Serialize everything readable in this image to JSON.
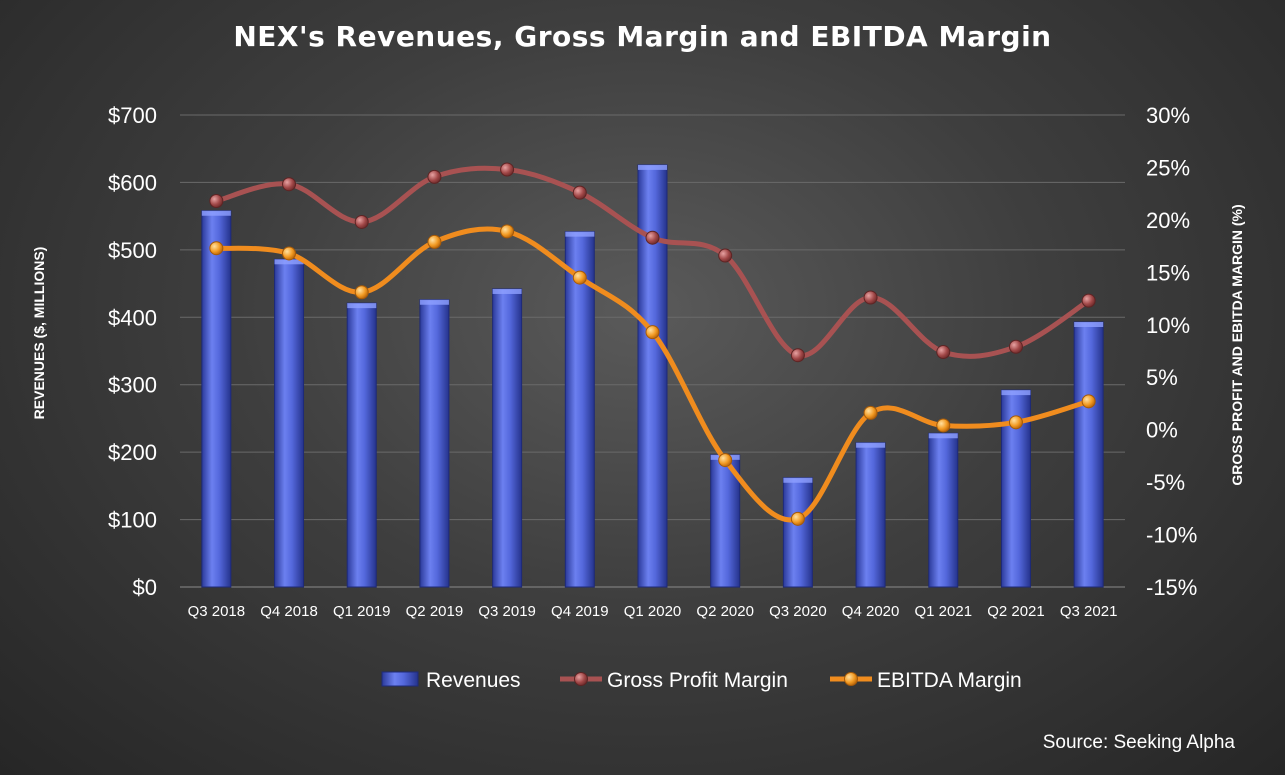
{
  "source": "Source: Seeking Alpha",
  "chart_data": {
    "type": "bar",
    "title": "NEX's Revenues, Gross Margin and EBITDA Margin",
    "categories": [
      "Q3 2018",
      "Q4 2018",
      "Q1 2019",
      "Q2 2019",
      "Q3 2019",
      "Q4 2019",
      "Q1 2020",
      "Q2 2020",
      "Q3 2020",
      "Q4 2020",
      "Q1 2021",
      "Q2 2021",
      "Q3 2021"
    ],
    "ylabel": "REVENUES ($, MILLIONS)",
    "y2label": "GROSS PROFIT AND EBITDA MARGIN (%)",
    "ylim": [
      0,
      700
    ],
    "y2lim": [
      -15,
      30
    ],
    "yticks": [
      "$0",
      "$100",
      "$200",
      "$300",
      "$400",
      "$500",
      "$600",
      "$700"
    ],
    "y2ticks": [
      "-15%",
      "-10%",
      "-5%",
      "0%",
      "5%",
      "10%",
      "15%",
      "20%",
      "25%",
      "30%"
    ],
    "grid": true,
    "legend_position": "bottom",
    "series": [
      {
        "name": "Revenues",
        "type": "bar",
        "axis": "left",
        "color": "#4a5fd0",
        "values": [
          558,
          486,
          421,
          426,
          442,
          527,
          626,
          196,
          162,
          214,
          228,
          292,
          393
        ]
      },
      {
        "name": "Gross Profit Margin",
        "type": "line",
        "axis": "right",
        "color": "#a85252",
        "values": [
          21.8,
          23.4,
          19.8,
          24.1,
          24.8,
          22.6,
          18.3,
          16.6,
          7.1,
          12.6,
          7.4,
          7.9,
          12.3
        ]
      },
      {
        "name": "EBITDA Margin",
        "type": "line",
        "axis": "right",
        "color": "#f08c1e",
        "values": [
          17.3,
          16.8,
          13.1,
          17.9,
          18.9,
          14.5,
          9.3,
          -2.9,
          -8.5,
          1.6,
          0.4,
          0.7,
          2.7
        ]
      }
    ]
  }
}
